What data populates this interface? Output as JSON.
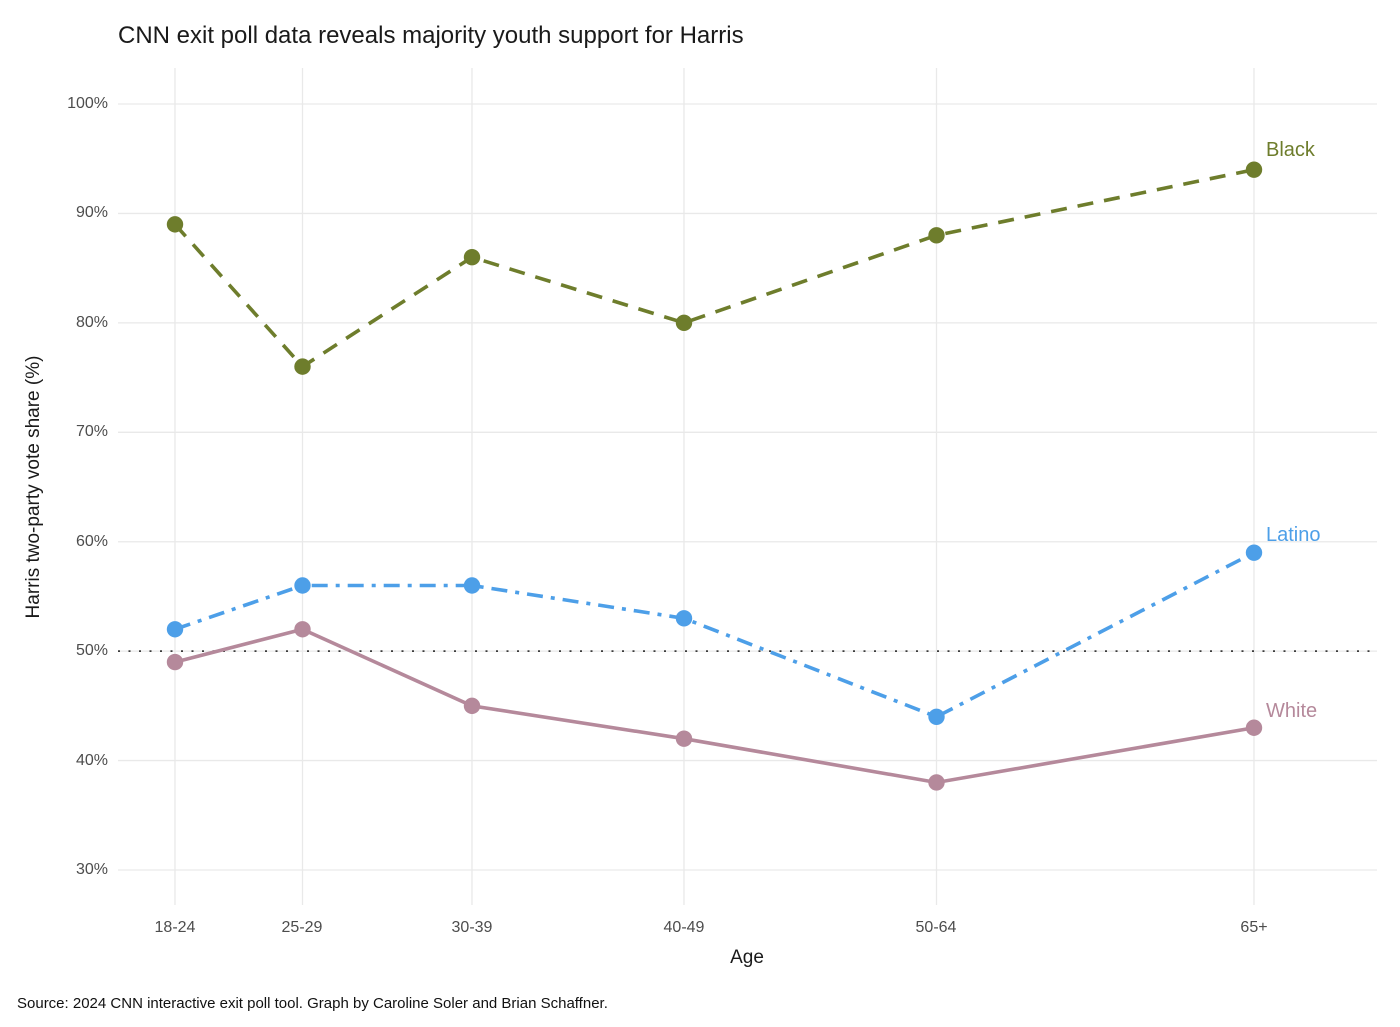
{
  "page": {
    "source_note": "Source: 2024 CNN interactive exit poll tool. Graph by Caroline Soler and Brian Schaffner."
  },
  "chart_data": {
    "type": "line",
    "title": "CNN exit poll data reveals majority youth support for Harris",
    "xlabel": "Age",
    "ylabel": "Harris two-party vote share (%)",
    "categories": [
      "18-24",
      "25-29",
      "30-39",
      "40-49",
      "50-64",
      "65+"
    ],
    "series": [
      {
        "name": "Black",
        "values": [
          89,
          76,
          86,
          80,
          88,
          94
        ],
        "color": "#6e7d2c",
        "line_style": "dashed"
      },
      {
        "name": "Latino",
        "values": [
          52,
          56,
          56,
          53,
          44,
          59
        ],
        "color": "#4d9fe8",
        "line_style": "dash-dot"
      },
      {
        "name": "White",
        "values": [
          49,
          52,
          45,
          42,
          38,
          43
        ],
        "color": "#b5899b",
        "line_style": "solid"
      }
    ],
    "y_ticks": [
      "100%",
      "90%",
      "80%",
      "70%",
      "60%",
      "50%",
      "40%",
      "30%"
    ],
    "ylim": [
      27,
      103
    ],
    "grid": true,
    "reference_line": {
      "y": 50,
      "style": "dotted",
      "color": "#3c3c3c"
    },
    "legend_position": "labels-at-line-ends",
    "gridline_color": "#e9e9e9"
  }
}
